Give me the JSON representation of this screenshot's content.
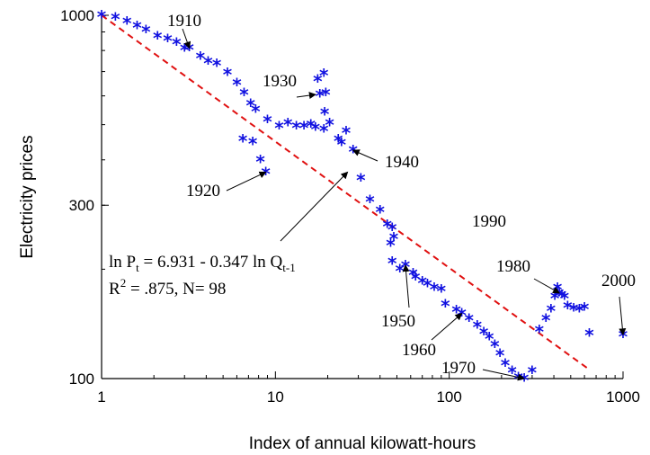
{
  "chart_data": {
    "type": "scatter",
    "title": "",
    "xlabel": "Index of annual kilowatt-hours",
    "ylabel": "Electricity prices",
    "xscale": "log",
    "yscale": "log",
    "xlim": [
      1,
      1000
    ],
    "ylim": [
      100,
      1000
    ],
    "x_ticks": [
      "1",
      "10",
      "100",
      "1000"
    ],
    "y_ticks": [
      "100",
      "300",
      "1000"
    ],
    "grid": false,
    "colors": {
      "points": "#1010e0",
      "fit": "#e01010",
      "axis": "#000000"
    },
    "series": [
      {
        "marker": "asterisk",
        "points": [
          [
            1.0,
            1000
          ],
          [
            1.2,
            985
          ],
          [
            1.4,
            960
          ],
          [
            1.6,
            935
          ],
          [
            1.8,
            910
          ],
          [
            2.1,
            875
          ],
          [
            2.4,
            860
          ],
          [
            2.7,
            840
          ],
          [
            3.0,
            810
          ],
          [
            3.2,
            812
          ],
          [
            3.7,
            770
          ],
          [
            4.1,
            745
          ],
          [
            4.6,
            735
          ],
          [
            5.3,
            695
          ],
          [
            6.0,
            650
          ],
          [
            6.6,
            610
          ],
          [
            7.2,
            570
          ],
          [
            7.7,
            550
          ],
          [
            9.0,
            515
          ],
          [
            10.5,
            495
          ],
          [
            11.8,
            505
          ],
          [
            13.2,
            495
          ],
          [
            14.6,
            495
          ],
          [
            16.0,
            500
          ],
          [
            17.0,
            490
          ],
          [
            17.5,
            665
          ],
          [
            19.0,
            690
          ],
          [
            18.0,
            605
          ],
          [
            19.5,
            610
          ],
          [
            19.2,
            540
          ],
          [
            20.5,
            505
          ],
          [
            19.0,
            485
          ],
          [
            23.0,
            455
          ],
          [
            24.0,
            445
          ],
          [
            25.5,
            480
          ],
          [
            28.0,
            425
          ],
          [
            31.0,
            355
          ],
          [
            35.0,
            310
          ],
          [
            40.0,
            290
          ],
          [
            44.0,
            265
          ],
          [
            47.0,
            260
          ],
          [
            48.0,
            245
          ],
          [
            46.0,
            235
          ],
          [
            47.0,
            210
          ],
          [
            52.0,
            200
          ],
          [
            56.0,
            205
          ],
          [
            62.0,
            195
          ],
          [
            64.0,
            190
          ],
          [
            70.0,
            185
          ],
          [
            75.0,
            182
          ],
          [
            82.0,
            178
          ],
          [
            90.0,
            176
          ],
          [
            95.0,
            160
          ],
          [
            110.0,
            154
          ],
          [
            118.0,
            151
          ],
          [
            130.0,
            146
          ],
          [
            145.0,
            140
          ],
          [
            158.0,
            134
          ],
          [
            170.0,
            130
          ],
          [
            183.0,
            124
          ],
          [
            196.0,
            117
          ],
          [
            210.0,
            110
          ],
          [
            230.0,
            105
          ],
          [
            250.0,
            101
          ],
          [
            270.0,
            100
          ],
          [
            300.0,
            105
          ],
          [
            330.0,
            136
          ],
          [
            360.0,
            146
          ],
          [
            385.0,
            155
          ],
          [
            405.0,
            168
          ],
          [
            420.0,
            178
          ],
          [
            430.0,
            172
          ],
          [
            445.0,
            170
          ],
          [
            460.0,
            168
          ],
          [
            480.0,
            158
          ],
          [
            520.0,
            156
          ],
          [
            560.0,
            155
          ],
          [
            600.0,
            157
          ],
          [
            640.0,
            133
          ],
          [
            1000.0,
            132
          ],
          [
            6.5,
            455
          ],
          [
            7.4,
            448
          ],
          [
            8.2,
            400
          ],
          [
            8.8,
            370
          ]
        ]
      }
    ],
    "fit_line": {
      "x": [
        1,
        620
      ],
      "y": [
        1000,
        107
      ]
    },
    "equation": {
      "line1_main": "ln P",
      "line1_sub1": "t",
      "line1_mid": " = 6.931 - 0.347 ln Q",
      "line1_sub2": "t-1",
      "line2_main": "R",
      "line2_sup": "2",
      "line2_rest": " = .875, N= 98"
    },
    "annotations": [
      {
        "text": "1910",
        "arrow_to": [
          3.2,
          812
        ]
      },
      {
        "text": "1920",
        "arrow_to": [
          8.8,
          370
        ]
      },
      {
        "text": "1930",
        "arrow_to": [
          17.0,
          605
        ]
      },
      {
        "text": "1940",
        "arrow_to": [
          28.0,
          425
        ]
      },
      {
        "text": "1950",
        "arrow_to": [
          56.0,
          205
        ]
      },
      {
        "text": "1960",
        "arrow_to": [
          118.0,
          151
        ]
      },
      {
        "text": "1970",
        "arrow_to": [
          270.0,
          100
        ]
      },
      {
        "text": "1980",
        "arrow_to": [
          430.0,
          172
        ]
      },
      {
        "text": "1990"
      },
      {
        "text": "2000",
        "arrow_to": [
          1000.0,
          132
        ]
      },
      {
        "text": "",
        "arrow_to": [
          26.0,
          370
        ]
      }
    ]
  }
}
